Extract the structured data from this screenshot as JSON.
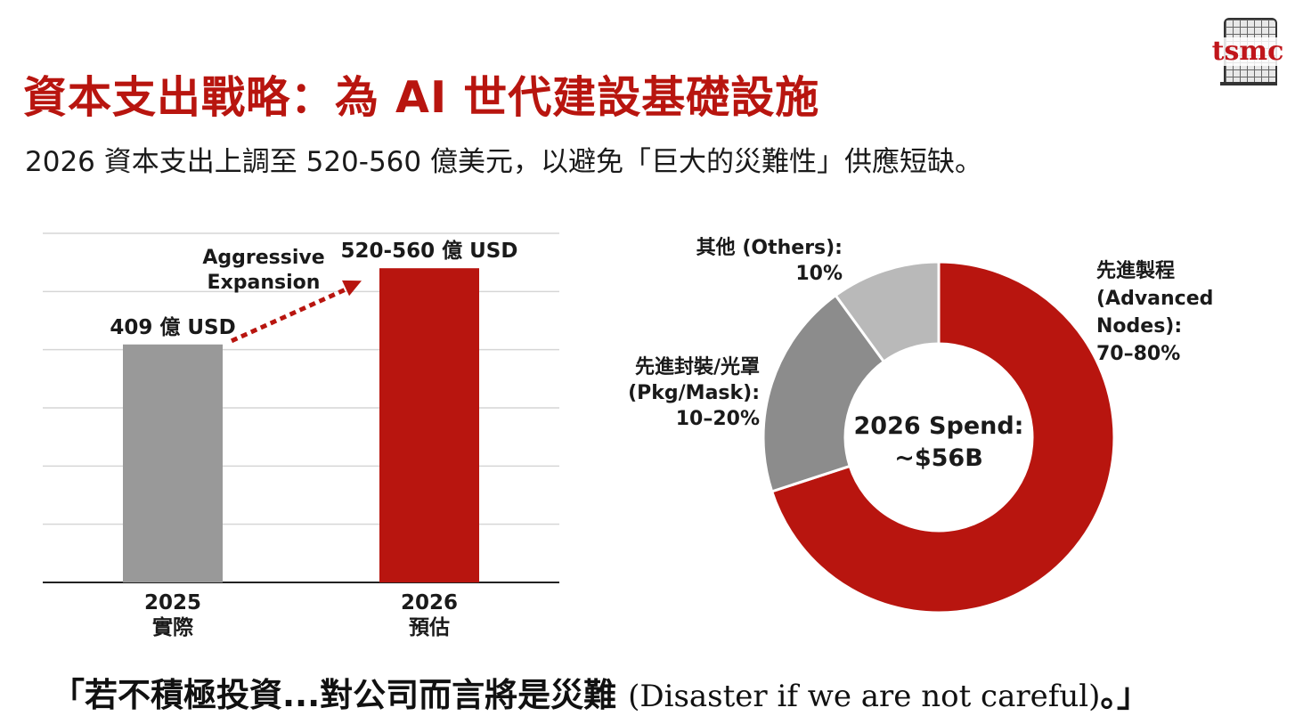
{
  "slide": {
    "title": "資本支出戰略：為 AI 世代建設基礎設施",
    "subtitle": "2026 資本支出上調至 520-560 億美元，以避免「巨大的災難性」供應短缺。",
    "logo_text": "tsmc",
    "quote_cn_prefix": "「若不積極投資...對公司而言將是災難",
    "quote_en": "(Disaster if we are not careful)",
    "quote_cn_suffix": "。」"
  },
  "colors": {
    "accent": "#b8150f",
    "bar_2025": "#999999",
    "bar_2026": "#b8150f",
    "slice_advanced": "#b8150f",
    "slice_pkg": "#8c8c8c",
    "slice_others": "#b9b9b9"
  },
  "chart_data": [
    {
      "type": "bar",
      "categories": [
        "2025",
        "2026"
      ],
      "category_sublabels": [
        "實際",
        "預估"
      ],
      "values": [
        40.9,
        54
      ],
      "value_range": [
        52,
        56
      ],
      "value_labels": [
        "409 億 USD",
        "520-560 億 USD"
      ],
      "units": "億 USD",
      "ylim": [
        0,
        60
      ],
      "grid": true,
      "annotation": {
        "lines": [
          "Aggressive",
          "Expansion"
        ],
        "arrow_from": "2025",
        "arrow_to": "2026"
      }
    },
    {
      "type": "pie",
      "donut": true,
      "center_label": [
        "2026 Spend:",
        "~$56B"
      ],
      "slices": [
        {
          "label_lines": [
            "先進製程",
            "(Advanced",
            "Nodes):",
            "70–80%"
          ],
          "value": 70
        },
        {
          "label_lines": [
            "先進封裝/光罩",
            "(Pkg/Mask):",
            "10–20%"
          ],
          "value": 20
        },
        {
          "label_lines": [
            "其他 (Others):",
            "10%"
          ],
          "value": 10
        }
      ]
    }
  ]
}
